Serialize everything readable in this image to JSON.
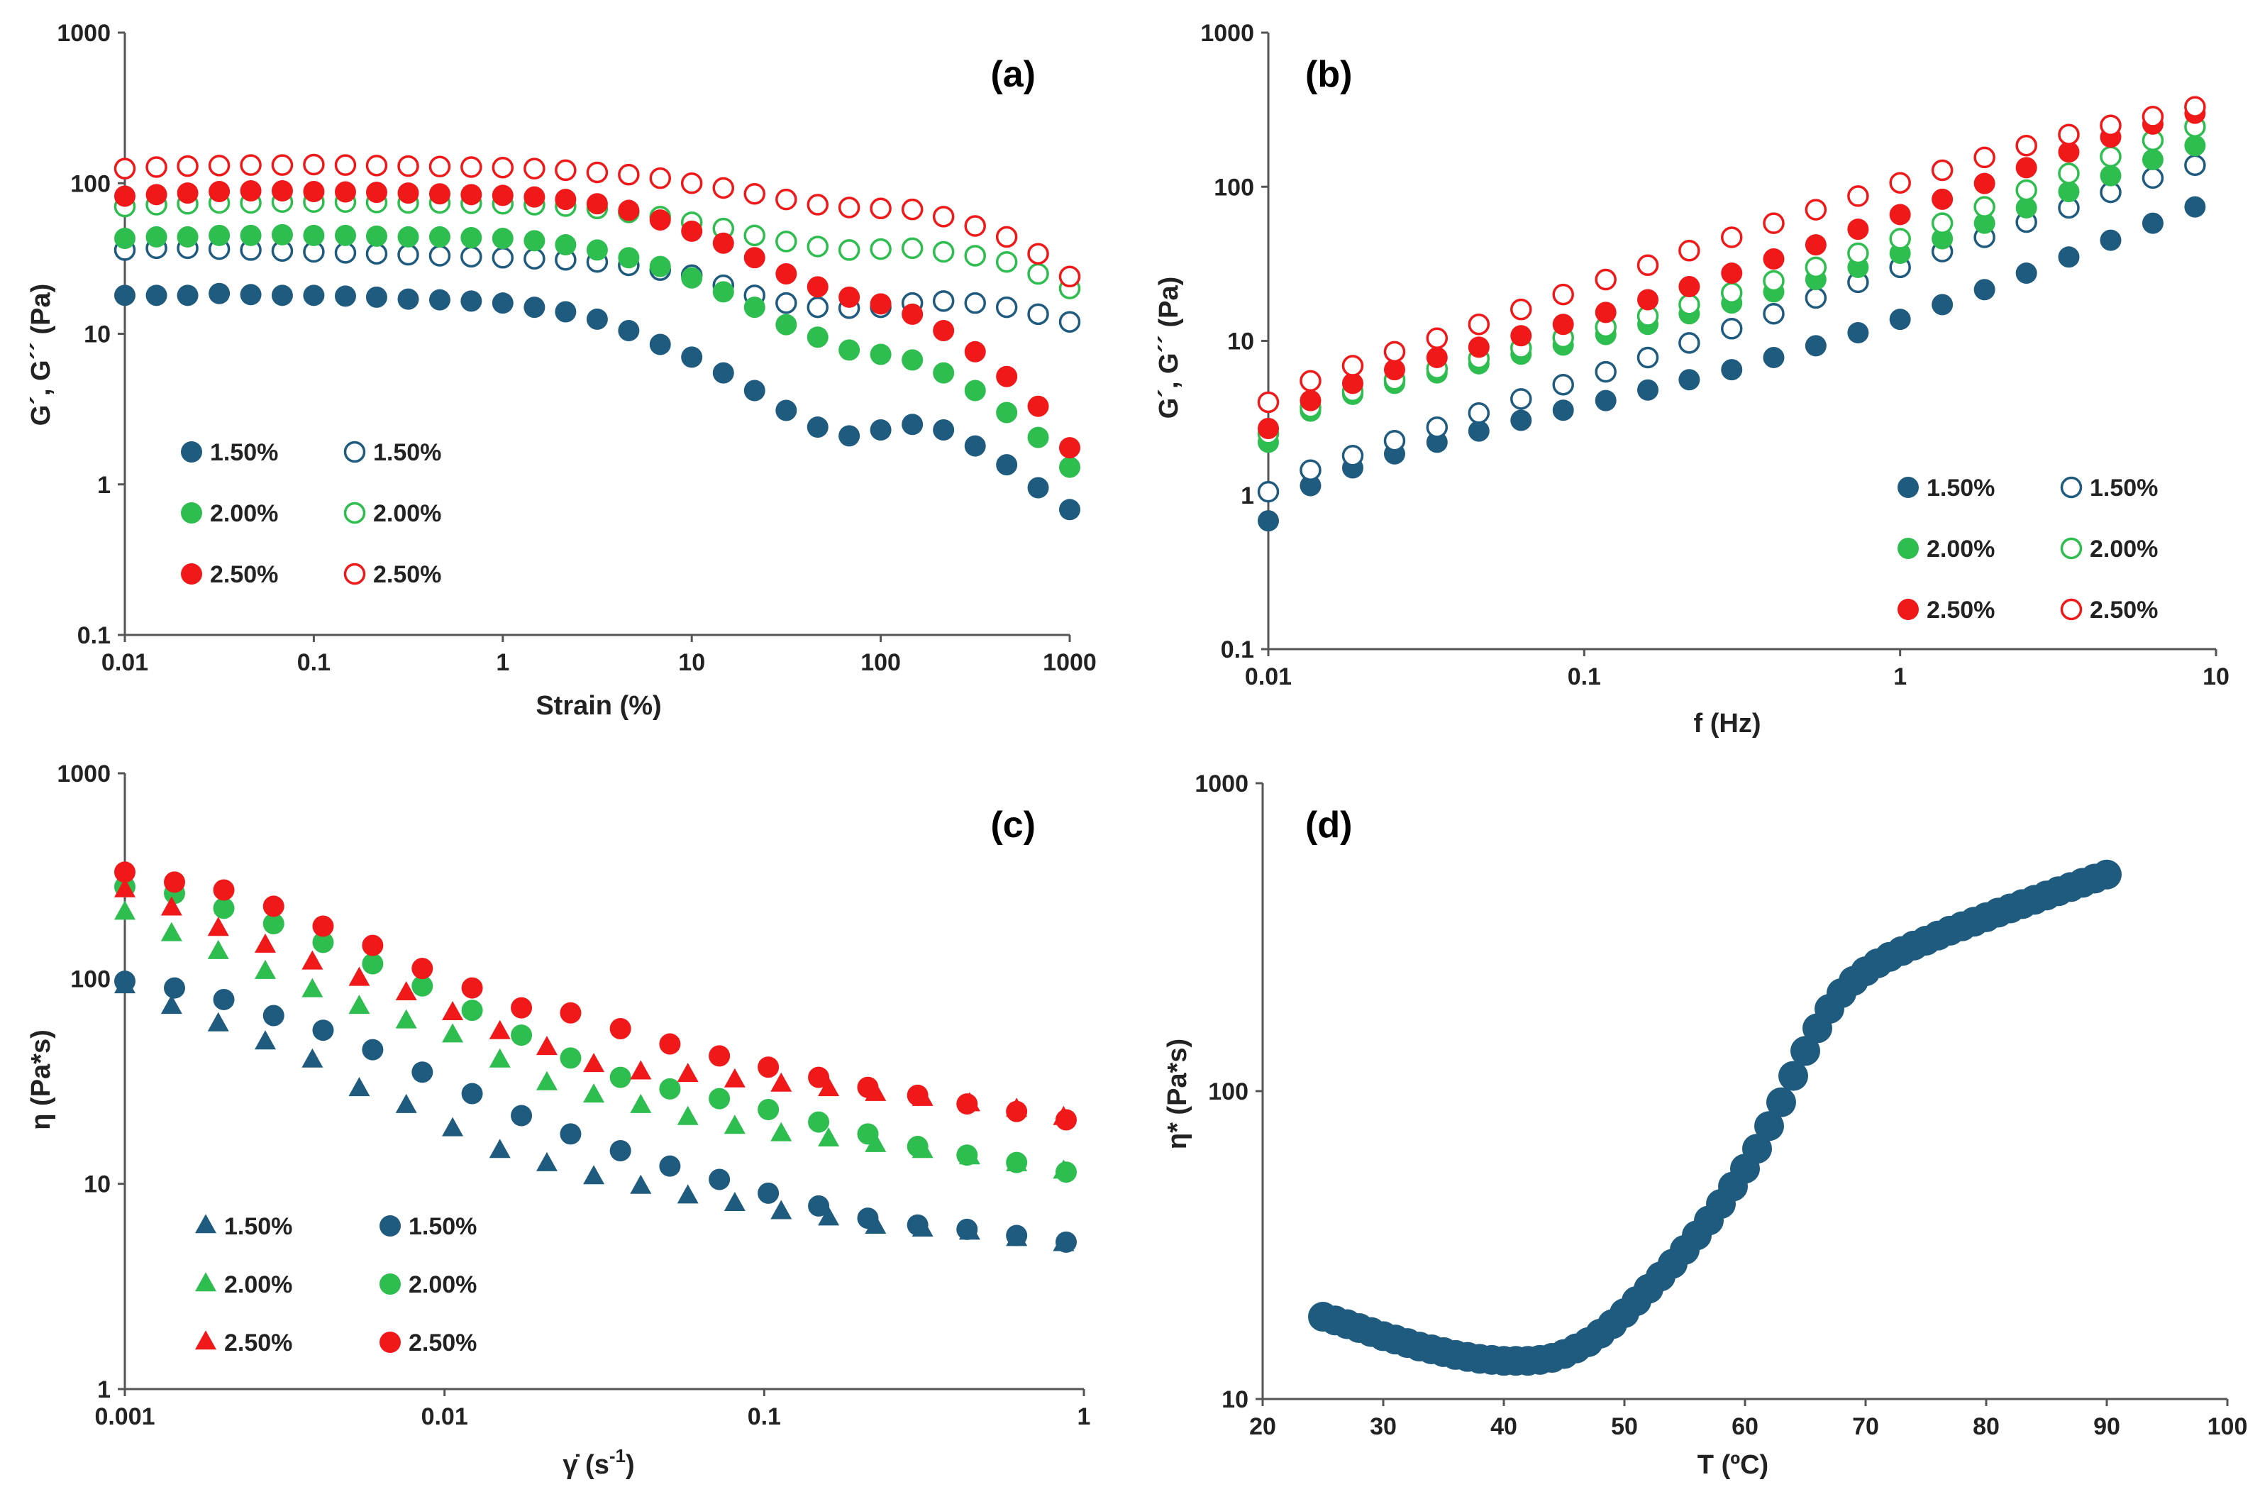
{
  "colors": {
    "blue": "#1f5b7e",
    "green": "#2ebd4f",
    "red": "#f01818"
  },
  "chart_data": [
    {
      "id": "a",
      "type": "scatter",
      "panel_label": "(a)",
      "xlabel": "Strain (%)",
      "ylabel": "G´, G´´ (Pa)",
      "xscale": "log",
      "yscale": "log",
      "xlim": [
        0.01,
        1000
      ],
      "ylim": [
        0.1,
        1000
      ],
      "xticks": [
        0.01,
        0.1,
        1,
        10,
        100,
        1000
      ],
      "xtick_labels": [
        "0.01",
        "0.1",
        "1",
        "10",
        "100",
        "1000"
      ],
      "yticks": [
        0.1,
        1,
        10,
        100,
        1000
      ],
      "ytick_labels": [
        "0.1",
        "1",
        "10",
        "100",
        "1000"
      ],
      "legend_position": "bottom-left",
      "x": [
        0.01,
        0.0147,
        0.0215,
        0.0316,
        0.0464,
        0.0681,
        0.1,
        0.147,
        0.215,
        0.316,
        0.464,
        0.681,
        1,
        1.47,
        2.15,
        3.16,
        4.64,
        6.81,
        10,
        14.7,
        21.5,
        31.6,
        46.4,
        68.1,
        100,
        147,
        215,
        316,
        464,
        681,
        1000
      ],
      "series": [
        {
          "name": "1.50%",
          "marker": "filled-circle",
          "color": "blue",
          "values": [
            18,
            18,
            18,
            18.5,
            18.2,
            18,
            18,
            17.8,
            17.5,
            17,
            16.8,
            16.5,
            16,
            15,
            14,
            12.5,
            10.5,
            8.5,
            7,
            5.5,
            4.2,
            3.1,
            2.4,
            2.1,
            2.3,
            2.5,
            2.3,
            1.8,
            1.35,
            0.95,
            0.68
          ]
        },
        {
          "name": "1.50%",
          "marker": "open-circle",
          "color": "blue",
          "values": [
            36,
            37,
            37,
            36.5,
            36,
            35.5,
            35,
            34.5,
            34,
            33.5,
            33,
            32.5,
            32,
            31.5,
            31,
            30,
            28.5,
            26.5,
            24.5,
            21,
            18,
            16,
            15,
            14.8,
            15,
            16,
            16.5,
            16,
            15,
            13.5,
            12
          ]
        },
        {
          "name": "2.00%",
          "marker": "filled-circle",
          "color": "green",
          "values": [
            43,
            44,
            44,
            45,
            45,
            45.5,
            45,
            45,
            44.5,
            44,
            44,
            43.5,
            43,
            41.5,
            39,
            36,
            32,
            28,
            23.5,
            19,
            15,
            11.5,
            9.5,
            7.8,
            7.3,
            6.7,
            5.5,
            4.2,
            3,
            2.05,
            1.3
          ]
        },
        {
          "name": "2.00%",
          "marker": "open-circle",
          "color": "green",
          "values": [
            70,
            72,
            73,
            74,
            74,
            75,
            75,
            75,
            74.5,
            74,
            74,
            73.5,
            73,
            72,
            70.5,
            68,
            64,
            60,
            55,
            50,
            45,
            41,
            38,
            36,
            36.5,
            37,
            35,
            33,
            30,
            25,
            20
          ]
        },
        {
          "name": "2.50%",
          "marker": "filled-circle",
          "color": "red",
          "values": [
            82,
            84,
            86,
            88,
            89,
            89,
            88,
            87.5,
            87,
            86,
            85,
            84,
            83,
            81,
            78,
            73,
            66,
            57,
            48,
            40,
            32,
            25,
            20.5,
            17.5,
            15.8,
            13.5,
            10.5,
            7.6,
            5.2,
            3.3,
            1.75
          ]
        },
        {
          "name": "2.50%",
          "marker": "open-circle",
          "color": "red",
          "values": [
            125,
            128,
            130,
            131,
            132,
            132,
            133,
            132,
            131,
            130,
            129,
            128,
            127,
            125,
            122,
            118,
            114,
            108,
            100,
            93,
            85,
            78,
            72,
            69,
            68,
            67,
            60,
            52,
            44,
            34,
            24
          ]
        }
      ]
    },
    {
      "id": "b",
      "type": "scatter",
      "panel_label": "(b)",
      "xlabel": "f (Hz)",
      "ylabel": "G´, G´´ (Pa)",
      "xscale": "log",
      "yscale": "log",
      "xlim": [
        0.01,
        10
      ],
      "ylim": [
        0.1,
        1000
      ],
      "xticks": [
        0.01,
        0.1,
        1,
        10
      ],
      "xtick_labels": [
        "0.01",
        "0.1",
        "1",
        "10"
      ],
      "yticks": [
        0.1,
        1,
        10,
        100,
        1000
      ],
      "ytick_labels": [
        "0.1",
        "1",
        "10",
        "100",
        "1000"
      ],
      "legend_position": "bottom-right",
      "x": [
        0.01,
        0.0136,
        0.0185,
        0.0251,
        0.0342,
        0.0464,
        0.0631,
        0.0858,
        0.117,
        0.159,
        0.215,
        0.293,
        0.398,
        0.541,
        0.736,
        1,
        1.36,
        1.85,
        2.51,
        3.42,
        4.64,
        6.31,
        8.58
      ],
      "series": [
        {
          "name": "1.50%",
          "marker": "filled-circle",
          "color": "blue",
          "values": [
            0.68,
            1.15,
            1.5,
            1.85,
            2.2,
            2.6,
            3.05,
            3.55,
            4.1,
            4.8,
            5.6,
            6.5,
            7.8,
            9.3,
            11.3,
            13.8,
            17.2,
            21.5,
            27.5,
            35,
            45,
            58,
            74
          ]
        },
        {
          "name": "1.50%",
          "marker": "open-circle",
          "color": "blue",
          "values": [
            1.05,
            1.45,
            1.8,
            2.25,
            2.75,
            3.4,
            4.2,
            5.2,
            6.3,
            7.8,
            9.7,
            12,
            15,
            19,
            24,
            30,
            38,
            47,
            59,
            73,
            92,
            114,
            138
          ]
        },
        {
          "name": "2.00%",
          "marker": "filled-circle",
          "color": "green",
          "values": [
            2.2,
            3.5,
            4.5,
            5.3,
            6.2,
            7.1,
            8.2,
            9.4,
            11,
            12.8,
            15,
            17.6,
            20.8,
            25,
            30,
            37,
            46,
            58,
            73,
            93,
            118,
            150,
            185
          ]
        },
        {
          "name": "2.00%",
          "marker": "open-circle",
          "color": "green",
          "values": [
            2.5,
            3.7,
            4.7,
            5.6,
            6.6,
            7.7,
            9,
            10.5,
            12.3,
            14.5,
            17.2,
            20.5,
            24.5,
            30,
            37,
            46,
            58,
            74,
            95,
            122,
            157,
            200,
            245
          ]
        },
        {
          "name": "2.50%",
          "marker": "filled-circle",
          "color": "red",
          "values": [
            2.7,
            4.1,
            5.3,
            6.5,
            7.8,
            9.1,
            10.8,
            12.8,
            15.3,
            18.5,
            22.5,
            27.5,
            34,
            42,
            53,
            66,
            83,
            105,
            133,
            168,
            210,
            255,
            300
          ]
        },
        {
          "name": "2.50%",
          "marker": "open-circle",
          "color": "red",
          "values": [
            4,
            5.5,
            6.9,
            8.5,
            10.4,
            12.8,
            16,
            20,
            25,
            31,
            38.5,
            47,
            58,
            71,
            87,
            106,
            128,
            155,
            185,
            218,
            250,
            285,
            330
          ]
        }
      ]
    },
    {
      "id": "c",
      "type": "scatter",
      "panel_label": "(c)",
      "xlabel": "γ̇ (s-1)",
      "ylabel": "η (Pa*s)",
      "xscale": "log",
      "yscale": "log",
      "xlim": [
        0.001,
        1
      ],
      "ylim": [
        1,
        1000
      ],
      "xticks": [
        0.001,
        0.01,
        0.1,
        1
      ],
      "xtick_labels": [
        "0.001",
        "0.01",
        "0.1",
        "1"
      ],
      "yticks": [
        1,
        10,
        100,
        1000
      ],
      "ytick_labels": [
        "1",
        "10",
        "100",
        "1000"
      ],
      "legend_position": "bottom-left",
      "x": [
        0.001,
        0.00143,
        0.00204,
        0.00292,
        0.00417,
        0.00596,
        0.00852,
        0.0122,
        0.0174,
        0.0248,
        0.0355,
        0.0507,
        0.0724,
        0.103,
        0.148,
        0.211,
        0.302,
        0.431,
        0.616,
        0.88
      ],
      "x_tri": [
        0.001,
        0.0014,
        0.00196,
        0.00275,
        0.00386,
        0.00541,
        0.00759,
        0.0106,
        0.0149,
        0.0209,
        0.0293,
        0.0411,
        0.0577,
        0.0809,
        0.113,
        0.159,
        0.223,
        0.313,
        0.439,
        0.616,
        0.864
      ],
      "series": [
        {
          "name": "1.50%",
          "marker": "triangle",
          "color": "blue",
          "x_key": "x_tri",
          "values": [
            92,
            73,
            60,
            49,
            40,
            29,
            24,
            18.5,
            14.5,
            12.5,
            10.8,
            9.7,
            8.7,
            8,
            7.3,
            6.8,
            6.2,
            6,
            5.8,
            5.4,
            5.1
          ]
        },
        {
          "name": "1.50%",
          "marker": "filled-circle",
          "color": "blue",
          "x_key": "x",
          "values": [
            97,
            90,
            79,
            66,
            56,
            45,
            35,
            27.5,
            21.5,
            17.5,
            14.5,
            12.2,
            10.5,
            9,
            7.8,
            6.8,
            6.3,
            6,
            5.6,
            5.2
          ]
        },
        {
          "name": "2.00%",
          "marker": "triangle",
          "color": "green",
          "x_key": "x_tri",
          "values": [
            210,
            165,
            135,
            108,
            88,
            73,
            62,
            53,
            40,
            31,
            27,
            24,
            21,
            19,
            17.5,
            16.5,
            15.5,
            14.5,
            13.5,
            12.5,
            11.5
          ]
        },
        {
          "name": "2.00%",
          "marker": "filled-circle",
          "color": "green",
          "x_key": "x",
          "values": [
            280,
            260,
            220,
            185,
            150,
            118,
            92,
            70,
            53,
            41,
            33,
            29,
            26,
            23,
            20,
            17.5,
            15.2,
            13.8,
            12.7,
            11.4
          ]
        },
        {
          "name": "2.50%",
          "marker": "triangle",
          "color": "red",
          "x_key": "x_tri",
          "values": [
            270,
            220,
            175,
            145,
            120,
            100,
            85,
            68,
            55,
            46,
            38,
            35,
            34,
            32,
            30.5,
            29,
            27.5,
            26,
            24.5,
            23,
            21
          ]
        },
        {
          "name": "2.50%",
          "marker": "filled-circle",
          "color": "red",
          "x_key": "x",
          "values": [
            330,
            295,
            270,
            225,
            180,
            145,
            112,
            90,
            72,
            68,
            57,
            48,
            42,
            37,
            33,
            29.5,
            27,
            24.5,
            22.5,
            20.5
          ]
        }
      ]
    },
    {
      "id": "d",
      "type": "scatter",
      "panel_label": "(d)",
      "xlabel": "T (ºC)",
      "ylabel": "η* (Pa*s)",
      "xscale": "linear",
      "yscale": "log",
      "xlim": [
        20,
        100
      ],
      "ylim": [
        10,
        1000
      ],
      "xticks": [
        20,
        30,
        40,
        50,
        60,
        70,
        80,
        90,
        100
      ],
      "xtick_labels": [
        "20",
        "30",
        "40",
        "50",
        "60",
        "70",
        "80",
        "90",
        "100"
      ],
      "yticks": [
        10,
        100,
        1000
      ],
      "ytick_labels": [
        "10",
        "100",
        "1000"
      ],
      "series": [
        {
          "name": "η*",
          "marker": "filled-circle",
          "color": "blue",
          "T": [
            25,
            26,
            27,
            28,
            29,
            30,
            31,
            32,
            33,
            34,
            35,
            36,
            37,
            38,
            39,
            40,
            41,
            42,
            43,
            44,
            45,
            46,
            47,
            48,
            49,
            50,
            51,
            52,
            53,
            54,
            55,
            56,
            57,
            58,
            59,
            60,
            61,
            62,
            63,
            64,
            65,
            66,
            67,
            68,
            69,
            70,
            71,
            72,
            73,
            74,
            75,
            76,
            77,
            78,
            79,
            80,
            81,
            82,
            83,
            84,
            85,
            86,
            87,
            88,
            89,
            90
          ],
          "values": [
            18.5,
            18,
            17.5,
            17,
            16.5,
            16,
            15.6,
            15.2,
            14.8,
            14.5,
            14.2,
            13.9,
            13.7,
            13.5,
            13.4,
            13.3,
            13.3,
            13.3,
            13.4,
            13.6,
            14,
            14.6,
            15.3,
            16.3,
            17.5,
            19,
            20.8,
            22.8,
            25,
            27.5,
            30.5,
            34,
            38,
            43,
            49,
            56,
            65,
            77,
            92,
            112,
            135,
            160,
            185,
            208,
            228,
            245,
            260,
            273,
            285,
            297,
            308,
            320,
            332,
            343,
            355,
            367,
            380,
            392,
            405,
            418,
            432,
            446,
            460,
            475,
            490,
            505
          ]
        }
      ]
    }
  ]
}
